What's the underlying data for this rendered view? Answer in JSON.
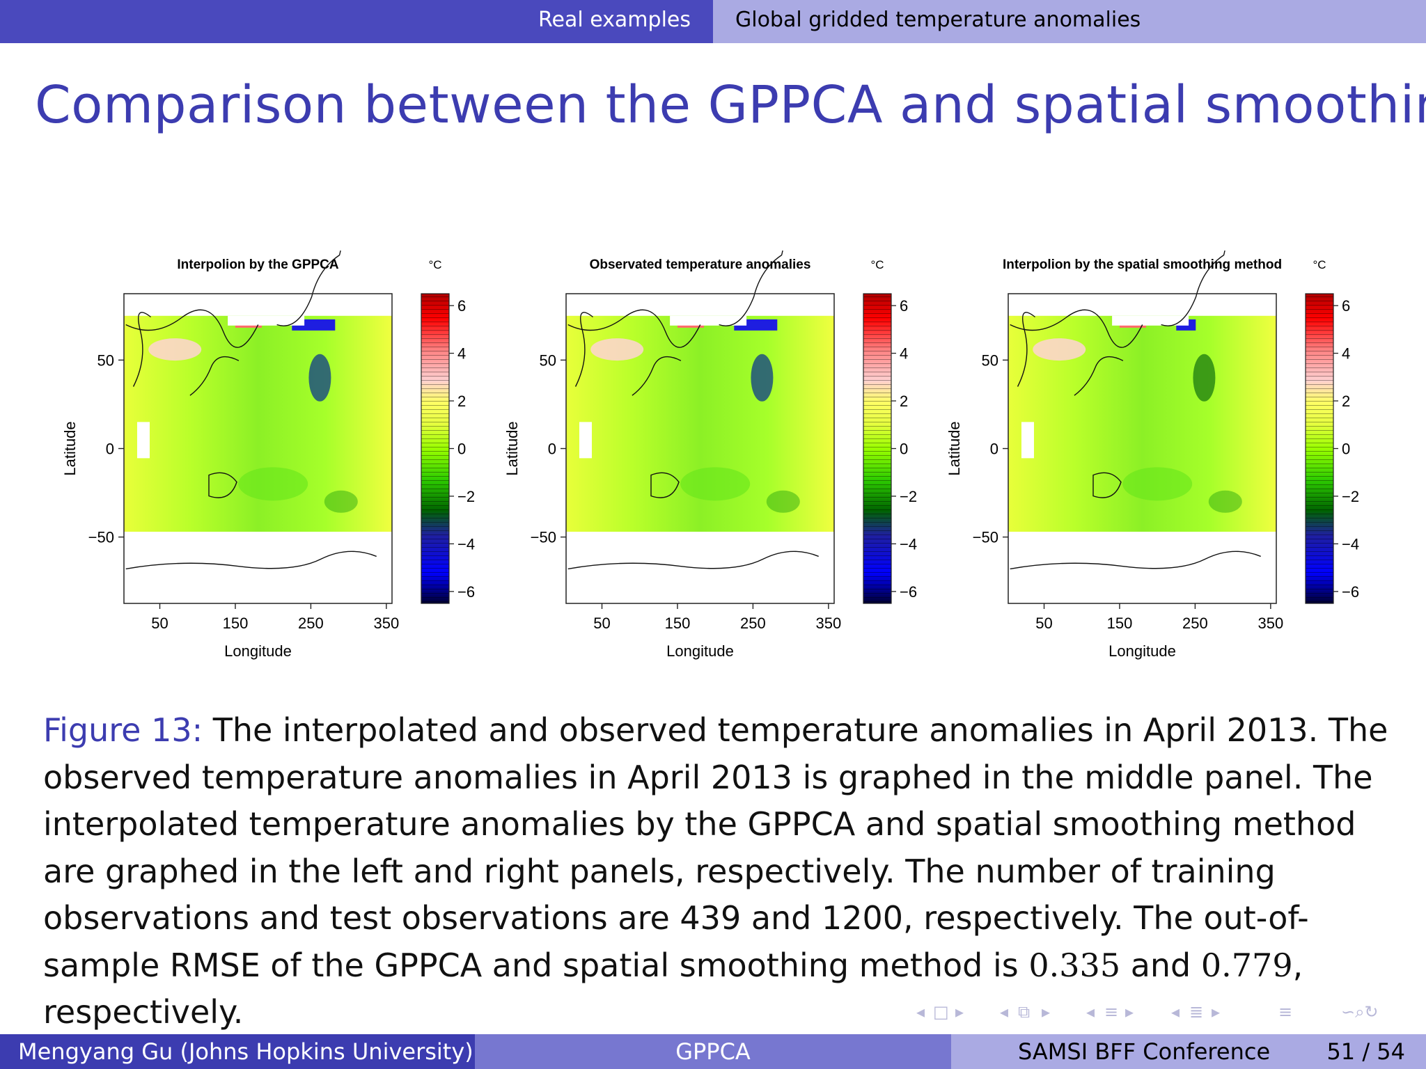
{
  "header": {
    "section": "Real examples",
    "subsection": "Global gridded temperature anomalies"
  },
  "frame_title": "Comparison between the GPPCA and spatial smoothing",
  "chart_data": [
    {
      "type": "heatmap",
      "title": "Interpolion by the GPPCA",
      "xlabel": "Longitude",
      "ylabel": "Latitude",
      "x_ticks": [
        50,
        150,
        250,
        350
      ],
      "y_ticks": [
        -50,
        0,
        50
      ],
      "xlim": [
        2.5,
        357.5
      ],
      "ylim": [
        -87.5,
        87.5
      ],
      "colorbar": {
        "unit": "°C",
        "ticks": [
          -6,
          -4,
          -2,
          0,
          2,
          4,
          6
        ],
        "range": [
          -6.5,
          6.5
        ]
      }
    },
    {
      "type": "heatmap",
      "title": "Observated temperature anomalies",
      "xlabel": "Longitude",
      "ylabel": "Latitude",
      "x_ticks": [
        50,
        150,
        250,
        350
      ],
      "y_ticks": [
        -50,
        0,
        50
      ],
      "xlim": [
        2.5,
        357.5
      ],
      "ylim": [
        -87.5,
        87.5
      ],
      "colorbar": {
        "unit": "°C",
        "ticks": [
          -6,
          -4,
          -2,
          0,
          2,
          4,
          6
        ],
        "range": [
          -6.5,
          6.5
        ]
      }
    },
    {
      "type": "heatmap",
      "title": "Interpolion by the spatial smoothing method",
      "xlabel": "Longitude",
      "ylabel": "Latitude",
      "x_ticks": [
        50,
        150,
        250,
        350
      ],
      "y_ticks": [
        -50,
        0,
        50
      ],
      "xlim": [
        2.5,
        357.5
      ],
      "ylim": [
        -87.5,
        87.5
      ],
      "colorbar": {
        "unit": "°C",
        "ticks": [
          -6,
          -4,
          -2,
          0,
          2,
          4,
          6
        ],
        "range": [
          -6.5,
          6.5
        ]
      }
    }
  ],
  "caption": {
    "label": "Figure 13:",
    "text_1": " The interpolated and observed temperature anomalies in April 2013. The observed temperature anomalies in April 2013 is graphed in the middle panel. The interpolated temperature anomalies by the GPPCA and spatial smoothing method are graphed in the left and right panels, respectively. The number of training observations and test observations are 439 and 1200, respectively. The out-of-sample RMSE of the GPPCA and spatial smoothing method is ",
    "rmse_gppca": "0.335",
    "text_2": " and ",
    "rmse_smoothing": "0.779",
    "text_3": ", respectively."
  },
  "footer": {
    "author": "Mengyang Gu  (Johns Hopkins University)",
    "short_title": "GPPCA",
    "conference": "SAMSI BFF Conference",
    "page": "51 / 54"
  },
  "nav_icons": [
    "nav-prev-icon",
    "frame-icon",
    "nav-next-icon",
    "subsection-icon",
    "section-icon",
    "toc-icon",
    "search-icon"
  ]
}
